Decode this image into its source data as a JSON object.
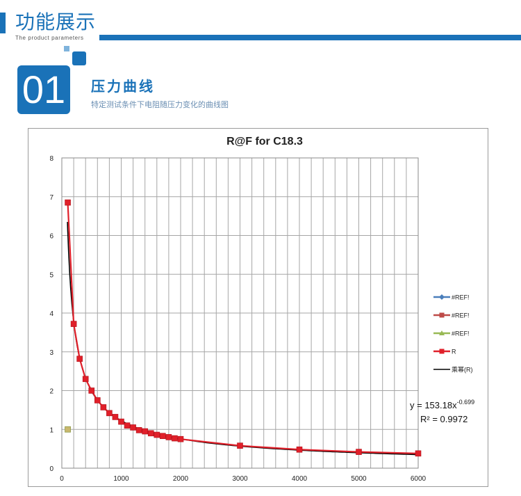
{
  "header": {
    "title": "功能展示",
    "subtitle": "The product parameters"
  },
  "section": {
    "number": "01",
    "title": "压力曲线",
    "description": "特定测试条件下电阻随压力变化的曲线图"
  },
  "colors": {
    "brand": "#1a72b8",
    "series_R": "#e0202a",
    "trend": "#000000",
    "legend_ref1": "#4a7ebb",
    "legend_ref2": "#be4b48",
    "legend_ref3": "#98b954"
  },
  "chart_data": {
    "type": "scatter",
    "title": "R@F  for C18.3",
    "xlim": [
      0,
      6000
    ],
    "ylim": [
      0,
      8
    ],
    "x_ticks": [
      0,
      1000,
      2000,
      3000,
      4000,
      5000,
      6000
    ],
    "y_ticks": [
      0,
      1,
      2,
      3,
      4,
      5,
      6,
      7,
      8
    ],
    "x_minor_step": 200,
    "grid": true,
    "legend_position": "right",
    "series": [
      {
        "name": "#REF!",
        "color": "#4a7ebb",
        "marker": "diamond",
        "points": []
      },
      {
        "name": "#REF!",
        "color": "#be4b48",
        "marker": "square",
        "points": []
      },
      {
        "name": "#REF!",
        "color": "#98b954",
        "marker": "triangle",
        "points": [
          {
            "x": 100,
            "y": 1.0
          }
        ]
      },
      {
        "name": "R",
        "color": "#e0202a",
        "marker": "square",
        "points": [
          {
            "x": 100,
            "y": 6.85
          },
          {
            "x": 200,
            "y": 3.72
          },
          {
            "x": 300,
            "y": 2.82
          },
          {
            "x": 400,
            "y": 2.3
          },
          {
            "x": 500,
            "y": 2.0
          },
          {
            "x": 600,
            "y": 1.75
          },
          {
            "x": 700,
            "y": 1.57
          },
          {
            "x": 800,
            "y": 1.42
          },
          {
            "x": 900,
            "y": 1.32
          },
          {
            "x": 1000,
            "y": 1.2
          },
          {
            "x": 1100,
            "y": 1.1
          },
          {
            "x": 1200,
            "y": 1.05
          },
          {
            "x": 1300,
            "y": 0.98
          },
          {
            "x": 1400,
            "y": 0.95
          },
          {
            "x": 1500,
            "y": 0.9
          },
          {
            "x": 1600,
            "y": 0.86
          },
          {
            "x": 1700,
            "y": 0.83
          },
          {
            "x": 1800,
            "y": 0.8
          },
          {
            "x": 1900,
            "y": 0.77
          },
          {
            "x": 2000,
            "y": 0.75
          },
          {
            "x": 3000,
            "y": 0.58
          },
          {
            "x": 4000,
            "y": 0.48
          },
          {
            "x": 5000,
            "y": 0.42
          },
          {
            "x": 6000,
            "y": 0.38
          }
        ]
      }
    ],
    "trendline": {
      "name": "乘幂(R)",
      "type": "power",
      "a": 153.18,
      "b": -0.699
    },
    "equation": {
      "text": "y = 153.18x",
      "exponent": "-0.699",
      "r2": "R² = 0.9972"
    }
  }
}
